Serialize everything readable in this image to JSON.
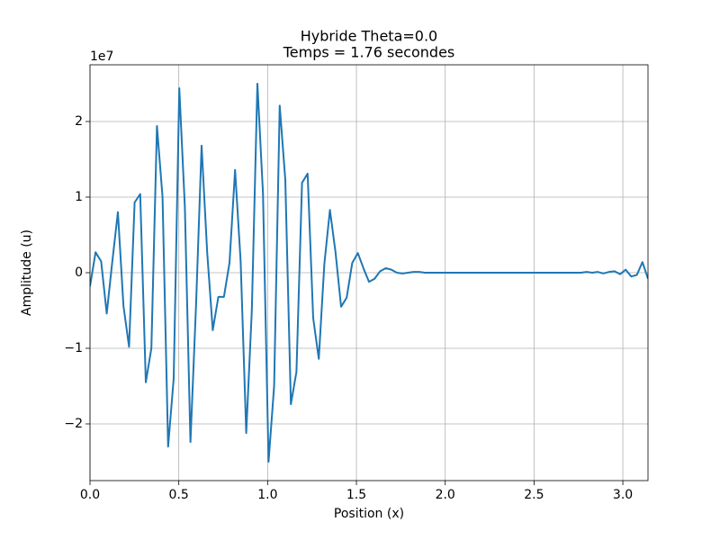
{
  "chart_data": {
    "type": "line",
    "title": "Hybride Theta=0.0",
    "subtitle": "Temps = 1.76 secondes",
    "xlabel": "Position (x)",
    "ylabel": "Amplitude (u)",
    "y_offset_label": "1e7",
    "color": "#1f77b4",
    "grid": true,
    "x": [
      0,
      0.0314,
      0.0628,
      0.0942,
      0.1257,
      0.1571,
      0.1885,
      0.2199,
      0.2513,
      0.2827,
      0.3142,
      0.3456,
      0.377,
      0.4084,
      0.4398,
      0.4712,
      0.5027,
      0.5341,
      0.5655,
      0.5969,
      0.6283,
      0.6597,
      0.6912,
      0.7226,
      0.754,
      0.7854,
      0.8168,
      0.8482,
      0.8796,
      0.9111,
      0.9425,
      0.9739,
      1.0053,
      1.0367,
      1.0681,
      1.0996,
      1.131,
      1.1624,
      1.1938,
      1.2252,
      1.2566,
      1.2881,
      1.3195,
      1.3509,
      1.3823,
      1.4137,
      1.4451,
      1.4765,
      1.508,
      1.5394,
      1.5708,
      1.6022,
      1.6336,
      1.665,
      1.6965,
      1.7279,
      1.7593,
      1.7907,
      1.8221,
      1.8535,
      1.885,
      1.9164,
      1.9478,
      1.9792,
      2.0106,
      2.042,
      2.0735,
      2.1049,
      2.1363,
      2.1677,
      2.1991,
      2.2305,
      2.2619,
      2.2934,
      2.3248,
      2.3562,
      2.3876,
      2.419,
      2.4504,
      2.4819,
      2.5133,
      2.5447,
      2.5761,
      2.6075,
      2.6389,
      2.6704,
      2.7018,
      2.7332,
      2.7646,
      2.796,
      2.8274,
      2.8588,
      2.8903,
      2.9217,
      2.9531,
      2.9845,
      3.0159,
      3.0473,
      3.0788,
      3.1102,
      3.1416
    ],
    "values": [
      -1800000,
      2700000,
      1500000,
      -5400000,
      1500000,
      8000000,
      -4400000,
      -9800000,
      9300000,
      10400000,
      -14500000,
      -10000000,
      19400000,
      10000000,
      -23000000,
      -14000000,
      24400000,
      8700000,
      -22400000,
      -4400000,
      16800000,
      2700000,
      -7600000,
      -3200000,
      -3200000,
      1300000,
      13600000,
      1500000,
      -21200000,
      -5000000,
      25000000,
      10500000,
      -25000000,
      -15000000,
      22100000,
      12300000,
      -17400000,
      -13100000,
      11900000,
      13100000,
      -6000000,
      -11400000,
      1200000,
      8300000,
      2700000,
      -4500000,
      -3300000,
      1300000,
      2600000,
      600000,
      -1200000,
      -800000,
      200000,
      600000,
      400000,
      0,
      -100000,
      0,
      100000,
      100000,
      0,
      0,
      0,
      0,
      0,
      0,
      0,
      0,
      0,
      0,
      0,
      0,
      0,
      0,
      0,
      0,
      0,
      0,
      0,
      0,
      0,
      0,
      0,
      0,
      0,
      0,
      0,
      0,
      0,
      100000,
      0,
      100000,
      -100000,
      100000,
      200000,
      -200000,
      400000,
      -500000,
      -300000,
      1400000,
      -800000
    ],
    "xlim": [
      0,
      3.1416
    ],
    "ylim": [
      -27500000,
      27500000
    ],
    "xticks": [
      {
        "value": 0,
        "label": "0.0"
      },
      0.5,
      {
        "value": 1,
        "label": "1.0"
      },
      1.5,
      {
        "value": 2,
        "label": "2.0"
      },
      2.5,
      {
        "value": 3,
        "label": "3.0"
      }
    ],
    "yticks": [
      {
        "value": -20000000,
        "label": "−2"
      },
      {
        "value": -10000000,
        "label": "−1"
      },
      0,
      {
        "value": 10000000,
        "label": "1"
      },
      {
        "value": 20000000,
        "label": "2"
      }
    ]
  }
}
